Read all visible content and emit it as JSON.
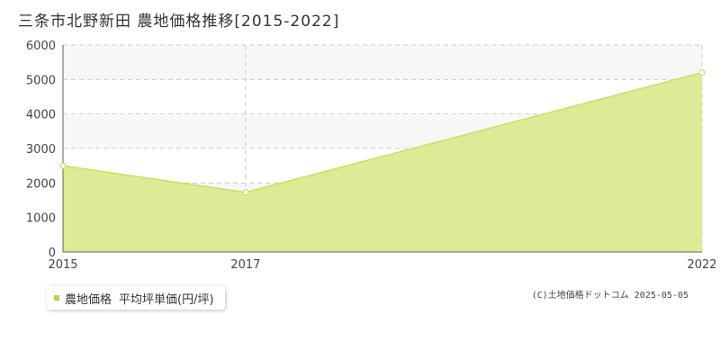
{
  "title": "三条市北野新田 農地価格推移[2015-2022]",
  "legend": {
    "series_label": "農地価格",
    "measure_label": "平均坪単価(円/坪)"
  },
  "credit": "(C)土地価格ドットコム 2025-05-05",
  "colors": {
    "fill": "#dcec94",
    "line": "#c5e06a",
    "marker_stroke": "#c5e06a",
    "legend_swatch": "#b7d54a",
    "grid": "#cccccc",
    "plot_band": "#f7f7f7",
    "axis_text": "#444444"
  },
  "chart_data": {
    "type": "area",
    "x": [
      2015,
      2017,
      2022
    ],
    "x_tick_labels": [
      "2015",
      "2017",
      "2022"
    ],
    "series": [
      {
        "name": "農地価格",
        "values": [
          2500,
          1730,
          5200
        ]
      }
    ],
    "y_ticks": [
      0,
      1000,
      2000,
      3000,
      4000,
      5000,
      6000
    ],
    "y_tick_labels": [
      "0",
      "1000",
      "2000",
      "3000",
      "4000",
      "5000",
      "6000"
    ],
    "ylim": [
      0,
      6000
    ],
    "xlim": [
      2015,
      2022
    ],
    "grid": true,
    "legend_position": "bottom-left"
  }
}
